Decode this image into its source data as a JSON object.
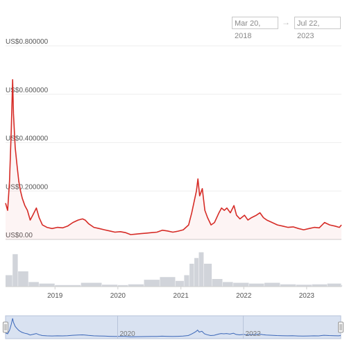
{
  "range": {
    "from": "Mar 20, 2018",
    "arrow": "→",
    "to": "Jul 22, 2023"
  },
  "colors": {
    "price_line": "#d62b26",
    "volume_bar": "#c9cdd3",
    "navigator_line": "#3a66b8",
    "navigator_fill": "#d9e2f1"
  },
  "chart_data": {
    "type": "line",
    "series_label": "",
    "y_unit_prefix": "US$",
    "ylim": [
      0,
      0.8
    ],
    "y_ticks": [
      {
        "value": 0,
        "label": "US$0.00"
      },
      {
        "value": 0.2,
        "label": "US$0.200000"
      },
      {
        "value": 0.4,
        "label": "US$0.400000"
      },
      {
        "value": 0.6,
        "label": "US$0.600000"
      },
      {
        "value": 0.8,
        "label": "US$0.800000"
      }
    ],
    "xlim": [
      "2018-03-20",
      "2023-07-22"
    ],
    "x_ticks": [
      "2019",
      "2020",
      "2021",
      "2022",
      "2023"
    ],
    "navigator_ticks": [
      "2020",
      "2022"
    ],
    "grid": true,
    "price": [
      [
        "2018-03-20",
        0.15
      ],
      [
        "2018-04-01",
        0.12
      ],
      [
        "2018-04-12",
        0.24
      ],
      [
        "2018-04-22",
        0.45
      ],
      [
        "2018-04-30",
        0.66
      ],
      [
        "2018-05-05",
        0.52
      ],
      [
        "2018-05-15",
        0.38
      ],
      [
        "2018-05-25",
        0.31
      ],
      [
        "2018-06-05",
        0.24
      ],
      [
        "2018-06-15",
        0.2
      ],
      [
        "2018-06-25",
        0.17
      ],
      [
        "2018-07-10",
        0.14
      ],
      [
        "2018-07-25",
        0.12
      ],
      [
        "2018-08-10",
        0.08
      ],
      [
        "2018-08-25",
        0.1
      ],
      [
        "2018-09-15",
        0.13
      ],
      [
        "2018-10-01",
        0.09
      ],
      [
        "2018-10-20",
        0.06
      ],
      [
        "2018-11-15",
        0.05
      ],
      [
        "2018-12-15",
        0.045
      ],
      [
        "2019-01-15",
        0.05
      ],
      [
        "2019-02-15",
        0.048
      ],
      [
        "2019-03-15",
        0.055
      ],
      [
        "2019-04-15",
        0.07
      ],
      [
        "2019-05-15",
        0.08
      ],
      [
        "2019-06-10",
        0.085
      ],
      [
        "2019-06-25",
        0.08
      ],
      [
        "2019-07-15",
        0.065
      ],
      [
        "2019-08-15",
        0.05
      ],
      [
        "2019-09-15",
        0.045
      ],
      [
        "2019-10-15",
        0.04
      ],
      [
        "2019-11-15",
        0.035
      ],
      [
        "2019-12-15",
        0.03
      ],
      [
        "2020-01-15",
        0.032
      ],
      [
        "2020-02-15",
        0.028
      ],
      [
        "2020-03-15",
        0.02
      ],
      [
        "2020-04-15",
        0.022
      ],
      [
        "2020-05-15",
        0.024
      ],
      [
        "2020-06-15",
        0.026
      ],
      [
        "2020-07-15",
        0.028
      ],
      [
        "2020-08-15",
        0.03
      ],
      [
        "2020-09-15",
        0.038
      ],
      [
        "2020-10-15",
        0.035
      ],
      [
        "2020-11-15",
        0.03
      ],
      [
        "2020-12-15",
        0.034
      ],
      [
        "2021-01-15",
        0.04
      ],
      [
        "2021-02-15",
        0.06
      ],
      [
        "2021-03-05",
        0.11
      ],
      [
        "2021-03-20",
        0.16
      ],
      [
        "2021-04-01",
        0.2
      ],
      [
        "2021-04-10",
        0.25
      ],
      [
        "2021-04-20",
        0.18
      ],
      [
        "2021-05-05",
        0.21
      ],
      [
        "2021-05-20",
        0.12
      ],
      [
        "2021-06-05",
        0.09
      ],
      [
        "2021-06-25",
        0.06
      ],
      [
        "2021-07-15",
        0.07
      ],
      [
        "2021-08-10",
        0.11
      ],
      [
        "2021-08-25",
        0.13
      ],
      [
        "2021-09-10",
        0.12
      ],
      [
        "2021-09-25",
        0.13
      ],
      [
        "2021-10-15",
        0.11
      ],
      [
        "2021-11-05",
        0.14
      ],
      [
        "2021-11-20",
        0.1
      ],
      [
        "2021-12-10",
        0.085
      ],
      [
        "2022-01-05",
        0.1
      ],
      [
        "2022-01-25",
        0.08
      ],
      [
        "2022-02-15",
        0.09
      ],
      [
        "2022-03-15",
        0.1
      ],
      [
        "2022-04-05",
        0.11
      ],
      [
        "2022-04-25",
        0.09
      ],
      [
        "2022-05-15",
        0.08
      ],
      [
        "2022-06-15",
        0.07
      ],
      [
        "2022-07-15",
        0.06
      ],
      [
        "2022-08-15",
        0.055
      ],
      [
        "2022-09-15",
        0.05
      ],
      [
        "2022-10-15",
        0.052
      ],
      [
        "2022-11-15",
        0.045
      ],
      [
        "2022-12-15",
        0.04
      ],
      [
        "2023-01-15",
        0.045
      ],
      [
        "2023-02-15",
        0.05
      ],
      [
        "2023-03-15",
        0.048
      ],
      [
        "2023-04-15",
        0.07
      ],
      [
        "2023-05-15",
        0.06
      ],
      [
        "2023-06-15",
        0.055
      ],
      [
        "2023-07-10",
        0.05
      ],
      [
        "2023-07-22",
        0.06
      ]
    ],
    "volume_relative": [
      [
        "2018-03-20",
        0.3
      ],
      [
        "2018-04-30",
        0.85
      ],
      [
        "2018-06-01",
        0.4
      ],
      [
        "2018-08-01",
        0.12
      ],
      [
        "2018-10-01",
        0.08
      ],
      [
        "2019-01-01",
        0.04
      ],
      [
        "2019-06-01",
        0.1
      ],
      [
        "2019-10-01",
        0.05
      ],
      [
        "2020-01-01",
        0.04
      ],
      [
        "2020-03-01",
        0.06
      ],
      [
        "2020-06-01",
        0.18
      ],
      [
        "2020-09-01",
        0.25
      ],
      [
        "2020-12-01",
        0.15
      ],
      [
        "2021-01-20",
        0.3
      ],
      [
        "2021-02-20",
        0.6
      ],
      [
        "2021-03-20",
        0.75
      ],
      [
        "2021-04-15",
        0.9
      ],
      [
        "2021-05-15",
        0.6
      ],
      [
        "2021-07-01",
        0.2
      ],
      [
        "2021-09-01",
        0.12
      ],
      [
        "2021-11-01",
        0.1
      ],
      [
        "2022-02-01",
        0.08
      ],
      [
        "2022-05-01",
        0.1
      ],
      [
        "2022-08-01",
        0.06
      ],
      [
        "2022-11-01",
        0.05
      ],
      [
        "2023-02-01",
        0.06
      ],
      [
        "2023-05-01",
        0.08
      ],
      [
        "2023-07-22",
        0.04
      ]
    ]
  }
}
